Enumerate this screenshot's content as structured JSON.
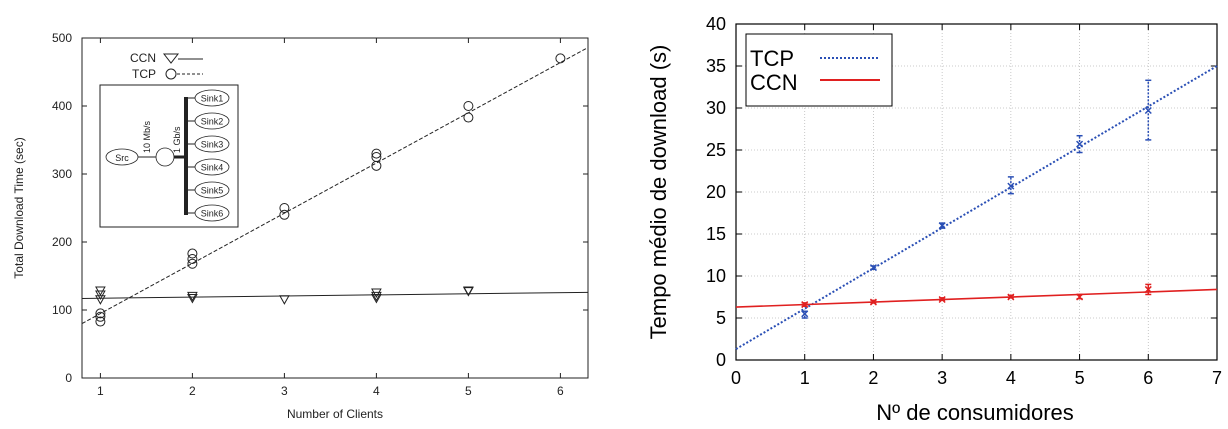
{
  "chart_data": [
    {
      "type": "scatter",
      "xlabel": "Number of Clients",
      "ylabel": "Total Download Time (sec)",
      "xlim": [
        0.8,
        6.3
      ],
      "ylim": [
        0,
        500
      ],
      "xticks": [
        "1",
        "2",
        "3",
        "4",
        "5",
        "6"
      ],
      "yticks": [
        "0",
        "100",
        "200",
        "300",
        "400",
        "500"
      ],
      "legend_position": "top-left",
      "legend": [
        "CCN",
        "TCP"
      ],
      "series": [
        {
          "name": "CCN",
          "marker": "triangle-down",
          "line_style": "solid",
          "x": [
            1,
            1,
            1,
            2,
            2,
            3,
            4,
            4,
            4,
            5,
            5
          ],
          "y": [
            128,
            122,
            115,
            120,
            117,
            115,
            125,
            120,
            117,
            128,
            127
          ],
          "fit_line": [
            [
              0.8,
              117
            ],
            [
              6.3,
              126
            ]
          ]
        },
        {
          "name": "TCP",
          "marker": "circle",
          "line_style": "dashed",
          "x": [
            1,
            1,
            1,
            2,
            2,
            2,
            3,
            3,
            4,
            4,
            4,
            5,
            5,
            6
          ],
          "y": [
            95,
            90,
            83,
            183,
            175,
            168,
            250,
            240,
            330,
            325,
            312,
            400,
            383,
            470
          ],
          "fit_line": [
            [
              0.8,
              80
            ],
            [
              6.3,
              486
            ]
          ]
        }
      ],
      "inset": {
        "source": "Src",
        "link_src": "10 Mb/s",
        "link_sinks": "1 Gb/s",
        "sinks": [
          "Sink1",
          "Sink2",
          "Sink3",
          "Sink4",
          "Sink5",
          "Sink6"
        ]
      }
    },
    {
      "type": "line",
      "xlabel": "Nº de consumidores",
      "ylabel": "Tempo médio de download (s)",
      "xlim": [
        0,
        7
      ],
      "ylim": [
        0,
        40
      ],
      "xticks": [
        "0",
        "1",
        "2",
        "3",
        "4",
        "5",
        "6",
        "7"
      ],
      "yticks": [
        "0",
        "5",
        "10",
        "15",
        "20",
        "25",
        "30",
        "35",
        "40"
      ],
      "grid": true,
      "legend_position": "top-left",
      "legend": [
        "TCP",
        "CCN"
      ],
      "series": [
        {
          "name": "TCP",
          "color": "#2a4fb5",
          "line_style": "dotted",
          "x": [
            1,
            2,
            3,
            4,
            5,
            6
          ],
          "y": [
            5.5,
            11,
            16,
            20.7,
            25.7,
            29.7
          ],
          "err_low": [
            5.0,
            10.8,
            15.7,
            19.8,
            24.7,
            26.2
          ],
          "err_high": [
            5.8,
            11.2,
            16.3,
            21.8,
            26.7,
            33.3
          ],
          "fit_line": [
            [
              0,
              1.3
            ],
            [
              7,
              35
            ]
          ]
        },
        {
          "name": "CCN",
          "color": "#e02020",
          "line_style": "solid",
          "x": [
            1,
            2,
            3,
            4,
            5,
            6
          ],
          "y": [
            6.6,
            6.9,
            7.2,
            7.5,
            7.5,
            8.4
          ],
          "err_low": [
            6.4,
            6.8,
            7.1,
            7.4,
            7.3,
            7.8
          ],
          "err_high": [
            6.8,
            7.1,
            7.4,
            7.7,
            7.8,
            9.0
          ],
          "fit_line": [
            [
              0,
              6.3
            ],
            [
              7,
              8.4
            ]
          ]
        }
      ]
    }
  ]
}
